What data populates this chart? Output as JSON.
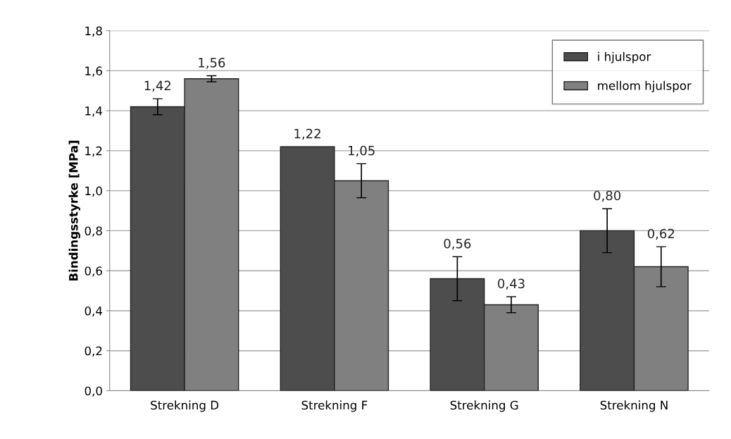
{
  "chart_data": {
    "type": "bar",
    "ylabel": "Bindingsstyrke [MPa]",
    "categories": [
      "Strekning D",
      "Strekning F",
      "Strekning G",
      "Strekning N"
    ],
    "series": [
      {
        "name": "i hjulspor",
        "color": "#4d4d4d",
        "values": [
          1.42,
          1.22,
          0.56,
          0.8
        ],
        "errors": [
          0.04,
          null,
          0.11,
          0.11
        ],
        "value_labels": [
          "1,42",
          "1,22",
          "0,56",
          "0,80"
        ]
      },
      {
        "name": "mellom hjulspor",
        "color": "#808080",
        "values": [
          1.56,
          1.05,
          0.43,
          0.62
        ],
        "errors": [
          0.015,
          0.085,
          0.04,
          0.1
        ],
        "value_labels": [
          "1,56",
          "1,05",
          "0,43",
          "0,62"
        ]
      }
    ],
    "ylim": [
      0,
      1.8
    ],
    "yticks": [
      {
        "value": 0,
        "label": "0,0"
      },
      {
        "value": 0.2,
        "label": "0,2"
      },
      {
        "value": 0.4,
        "label": "0,4"
      },
      {
        "value": 0.6,
        "label": "0,6"
      },
      {
        "value": 0.8,
        "label": "0,8"
      },
      {
        "value": 1.0,
        "label": "1,0"
      },
      {
        "value": 1.2,
        "label": "1,2"
      },
      {
        "value": 1.4,
        "label": "1,4"
      },
      {
        "value": 1.6,
        "label": "1,6"
      },
      {
        "value": 1.8,
        "label": "1,8"
      }
    ],
    "grid": "y",
    "legend": "top right"
  }
}
